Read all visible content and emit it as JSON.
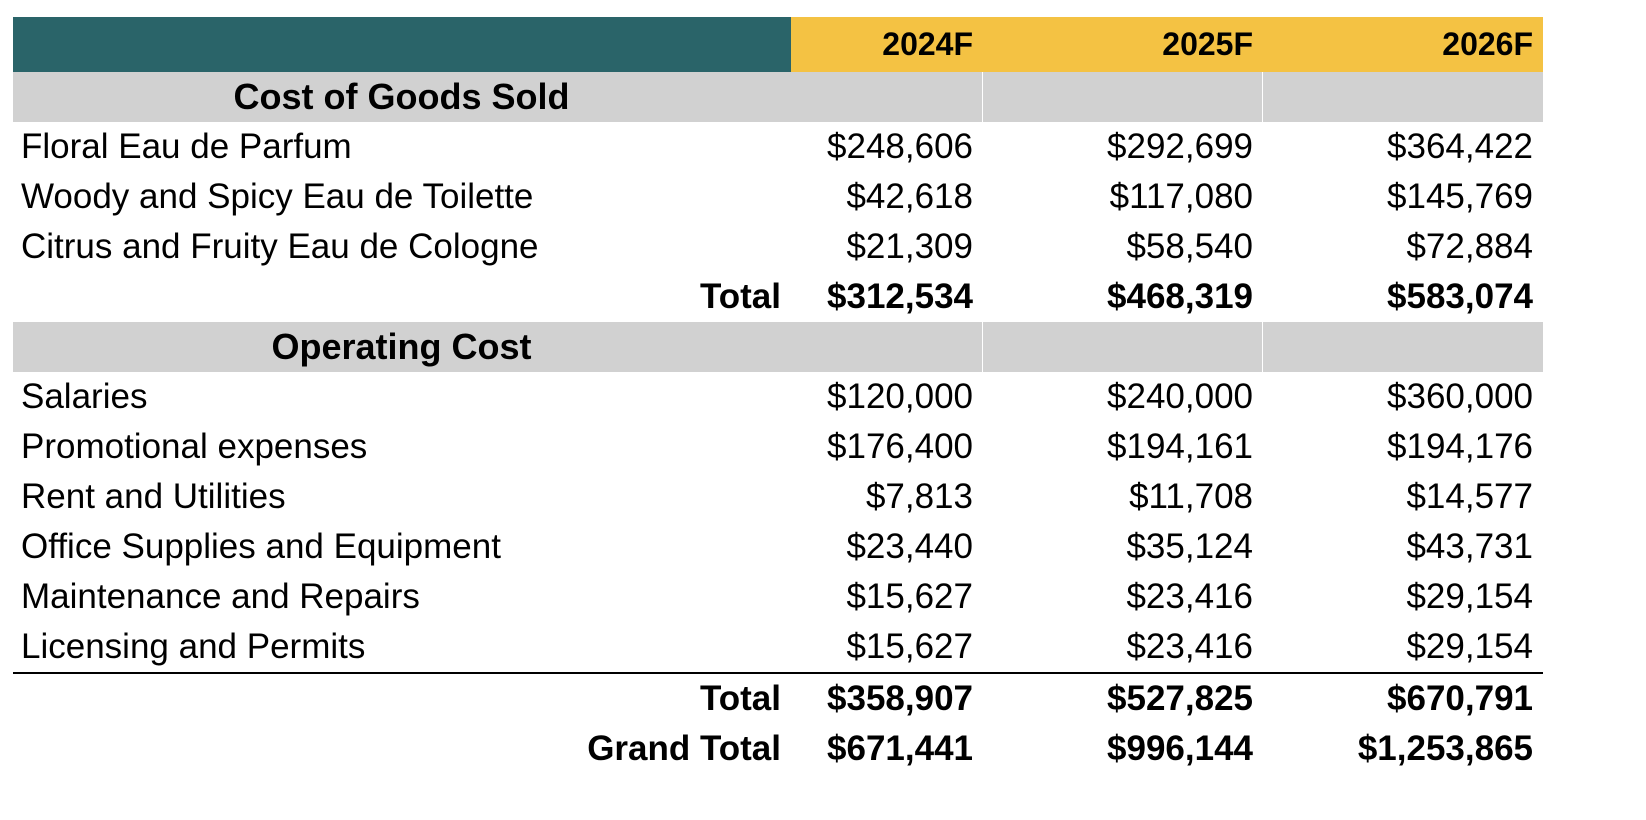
{
  "header": {
    "col1": "2024F",
    "col2": "2025F",
    "col3": "2026F"
  },
  "sections": [
    {
      "title": "Cost of Goods Sold",
      "rows": [
        {
          "label": "Floral Eau de Parfum",
          "y2024": "$248,606",
          "y2025": "$292,699",
          "y2026": "$364,422"
        },
        {
          "label": "Woody and Spicy Eau de Toilette",
          "y2024": "$42,618",
          "y2025": "$117,080",
          "y2026": "$145,769"
        },
        {
          "label": "Citrus and Fruity Eau de Cologne",
          "y2024": "$21,309",
          "y2025": "$58,540",
          "y2026": "$72,884"
        }
      ],
      "total": {
        "label": "Total",
        "y2024": "$312,534",
        "y2025": "$468,319",
        "y2026": "$583,074"
      }
    },
    {
      "title": "Operating Cost",
      "rows": [
        {
          "label": "Salaries",
          "y2024": "$120,000",
          "y2025": "$240,000",
          "y2026": "$360,000"
        },
        {
          "label": "Promotional expenses",
          "y2024": "$176,400",
          "y2025": "$194,161",
          "y2026": "$194,176"
        },
        {
          "label": "Rent and Utilities",
          "y2024": "$7,813",
          "y2025": "$11,708",
          "y2026": "$14,577"
        },
        {
          "label": "Office Supplies and Equipment",
          "y2024": "$23,440",
          "y2025": "$35,124",
          "y2026": "$43,731"
        },
        {
          "label": "Maintenance and Repairs",
          "y2024": "$15,627",
          "y2025": "$23,416",
          "y2026": "$29,154"
        },
        {
          "label": "Licensing and Permits",
          "y2024": "$15,627",
          "y2025": "$23,416",
          "y2026": "$29,154"
        }
      ],
      "total": {
        "label": "Total",
        "y2024": "$358,907",
        "y2025": "$527,825",
        "y2026": "$670,791"
      }
    }
  ],
  "grand_total": {
    "label": "Grand Total",
    "y2024": "$671,441",
    "y2025": "$996,144",
    "y2026": "$1,253,865"
  },
  "colors": {
    "header_teal": "#2a6469",
    "header_yellow": "#f4c243",
    "section_gray": "#d1d1d1"
  }
}
